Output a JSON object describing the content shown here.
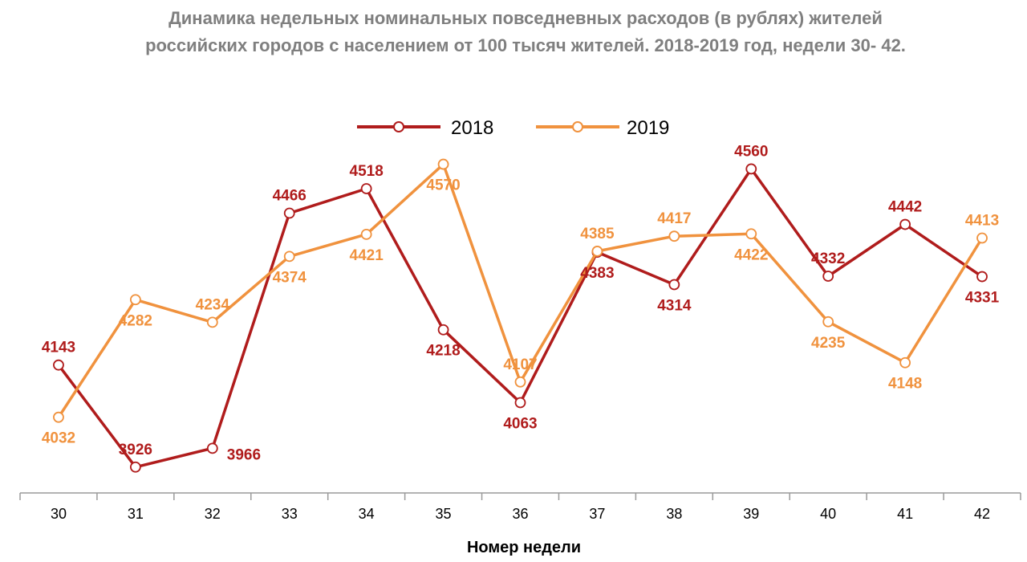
{
  "chart_data": {
    "type": "line",
    "title_line1": "Динамика недельных номинальных повседневных расходов (в рублях) жителей",
    "title_line2": "российских городов с населением от 100 тысяч жителей. 2018-2019 год, недели 30- 42.",
    "xlabel": "Номер недели",
    "ylabel": "",
    "categories": [
      "30",
      "31",
      "32",
      "33",
      "34",
      "35",
      "36",
      "37",
      "38",
      "39",
      "40",
      "41",
      "42"
    ],
    "ylim": [
      3900,
      4600
    ],
    "grid": false,
    "legend_position": "top-center",
    "series": [
      {
        "name": "2018",
        "color": "#b01c1c",
        "values": [
          4143,
          3926,
          3966,
          4466,
          4518,
          4218,
          4063,
          4383,
          4314,
          4560,
          4332,
          4442,
          4331
        ],
        "label_pos": [
          "above",
          "above",
          "right",
          "above",
          "above",
          "below",
          "below",
          "below",
          "below",
          "above",
          "above",
          "above",
          "below"
        ]
      },
      {
        "name": "2019",
        "color": "#f0923e",
        "values": [
          4032,
          4282,
          4234,
          4374,
          4421,
          4570,
          4107,
          4385,
          4417,
          4422,
          4235,
          4148,
          4413
        ],
        "label_pos": [
          "below",
          "below",
          "above",
          "below",
          "below",
          "below",
          "above",
          "above",
          "above",
          "below",
          "below",
          "below",
          "above"
        ]
      }
    ]
  }
}
